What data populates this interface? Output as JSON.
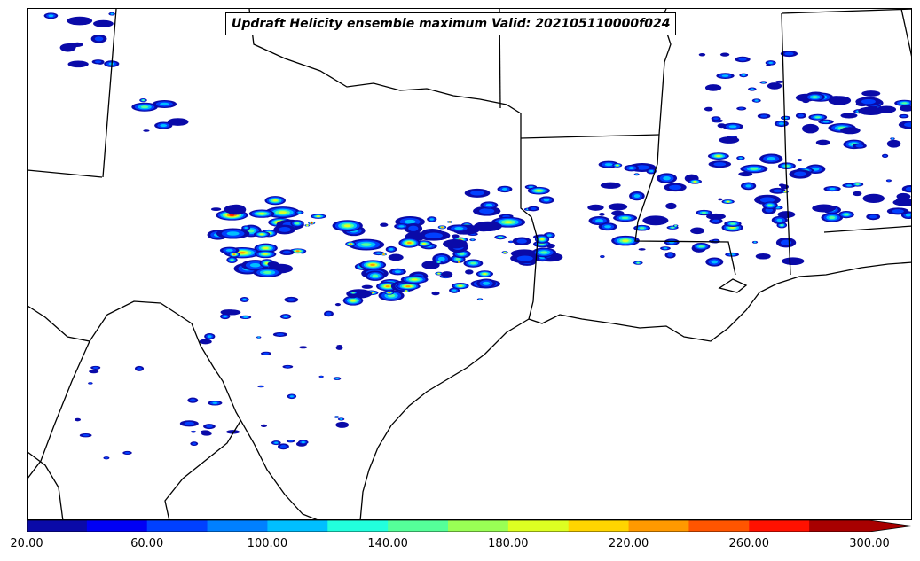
{
  "title": "Updraft Helicity ensemble maximum Valid: 202105110000f024",
  "colorbar": {
    "tick_labels": [
      "20.00",
      "60.00",
      "100.00",
      "140.00",
      "180.00",
      "220.00",
      "260.00",
      "300.00"
    ],
    "levels": [
      20,
      40,
      60,
      80,
      100,
      120,
      140,
      160,
      180,
      200,
      220,
      240,
      260,
      280,
      300
    ],
    "colors": [
      "#0a0aa8",
      "#0000f5",
      "#0040ff",
      "#0080ff",
      "#00bfff",
      "#22ffdd",
      "#55ff99",
      "#99ff55",
      "#ddff22",
      "#ffd500",
      "#ff9900",
      "#ff5500",
      "#ff1100",
      "#a80000"
    ],
    "extend": "max"
  },
  "map": {
    "coastline_color": "#000000",
    "border_color": "#000000"
  }
}
